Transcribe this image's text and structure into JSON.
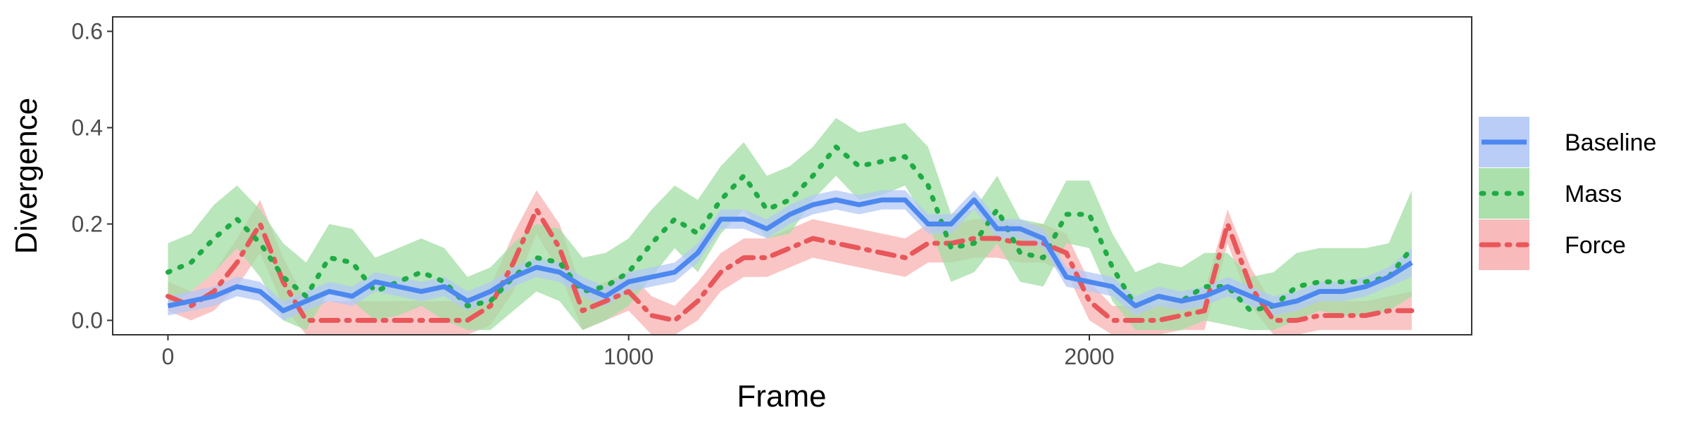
{
  "chart_data": {
    "type": "line",
    "xlabel": "Frame",
    "ylabel": "Divergence",
    "xlim": [
      -120,
      2830
    ],
    "ylim": [
      -0.03,
      0.63
    ],
    "x_ticks": [
      0,
      1000,
      2000
    ],
    "x_tick_labels": [
      "0",
      "1000",
      "2000"
    ],
    "y_ticks": [
      0.0,
      0.2,
      0.4,
      0.6
    ],
    "y_tick_labels": [
      "0.0",
      "0.2",
      "0.4",
      "0.6"
    ],
    "grid": false,
    "legend_position": "right",
    "x": [
      0,
      50,
      100,
      150,
      200,
      250,
      300,
      350,
      400,
      450,
      500,
      550,
      600,
      650,
      700,
      750,
      800,
      850,
      900,
      950,
      1000,
      1050,
      1100,
      1150,
      1200,
      1250,
      1300,
      1350,
      1400,
      1450,
      1500,
      1550,
      1600,
      1650,
      1700,
      1750,
      1800,
      1850,
      1900,
      1950,
      2000,
      2050,
      2100,
      2150,
      2200,
      2250,
      2300,
      2350,
      2400,
      2450,
      2500,
      2550,
      2600,
      2650,
      2700
    ],
    "series": [
      {
        "name": "Baseline",
        "color": "#4d88f0",
        "band_color": "#b3c8f5",
        "dash": "solid",
        "values": [
          0.03,
          0.04,
          0.05,
          0.07,
          0.06,
          0.02,
          0.04,
          0.06,
          0.05,
          0.08,
          0.07,
          0.06,
          0.07,
          0.04,
          0.06,
          0.09,
          0.11,
          0.1,
          0.07,
          0.05,
          0.08,
          0.09,
          0.1,
          0.14,
          0.21,
          0.21,
          0.19,
          0.22,
          0.24,
          0.25,
          0.24,
          0.25,
          0.25,
          0.2,
          0.2,
          0.25,
          0.19,
          0.19,
          0.17,
          0.09,
          0.08,
          0.07,
          0.03,
          0.05,
          0.04,
          0.05,
          0.07,
          0.05,
          0.03,
          0.04,
          0.06,
          0.06,
          0.07,
          0.09,
          0.12
        ],
        "lower": [
          0.01,
          0.02,
          0.03,
          0.05,
          0.04,
          0.0,
          0.02,
          0.04,
          0.03,
          0.06,
          0.05,
          0.04,
          0.05,
          0.02,
          0.04,
          0.07,
          0.09,
          0.08,
          0.05,
          0.03,
          0.06,
          0.07,
          0.08,
          0.12,
          0.19,
          0.19,
          0.17,
          0.2,
          0.22,
          0.23,
          0.22,
          0.23,
          0.23,
          0.18,
          0.18,
          0.23,
          0.17,
          0.17,
          0.15,
          0.07,
          0.06,
          0.05,
          0.01,
          0.03,
          0.02,
          0.03,
          0.05,
          0.03,
          0.01,
          0.02,
          0.04,
          0.04,
          0.05,
          0.07,
          0.09
        ],
        "upper": [
          0.05,
          0.06,
          0.07,
          0.09,
          0.08,
          0.04,
          0.06,
          0.08,
          0.07,
          0.1,
          0.09,
          0.08,
          0.09,
          0.06,
          0.08,
          0.11,
          0.13,
          0.12,
          0.09,
          0.07,
          0.1,
          0.11,
          0.12,
          0.16,
          0.23,
          0.23,
          0.21,
          0.24,
          0.26,
          0.27,
          0.26,
          0.27,
          0.27,
          0.22,
          0.22,
          0.27,
          0.21,
          0.21,
          0.19,
          0.11,
          0.1,
          0.09,
          0.05,
          0.07,
          0.06,
          0.07,
          0.09,
          0.07,
          0.05,
          0.06,
          0.08,
          0.08,
          0.09,
          0.11,
          0.15
        ]
      },
      {
        "name": "Mass",
        "color": "#1fab45",
        "band_color": "#a2dda3",
        "dash": "dotted",
        "values": [
          0.1,
          0.12,
          0.17,
          0.21,
          0.16,
          0.09,
          0.05,
          0.13,
          0.12,
          0.06,
          0.08,
          0.1,
          0.08,
          0.03,
          0.04,
          0.09,
          0.13,
          0.12,
          0.06,
          0.07,
          0.1,
          0.16,
          0.21,
          0.18,
          0.25,
          0.3,
          0.23,
          0.25,
          0.3,
          0.36,
          0.32,
          0.33,
          0.34,
          0.28,
          0.15,
          0.16,
          0.23,
          0.14,
          0.13,
          0.22,
          0.22,
          0.11,
          0.03,
          0.05,
          0.04,
          0.07,
          0.07,
          0.02,
          0.03,
          0.07,
          0.08,
          0.08,
          0.08,
          0.09,
          0.15
        ],
        "lower": [
          0.03,
          0.06,
          0.1,
          0.15,
          0.09,
          0.0,
          -0.02,
          0.06,
          0.04,
          0.0,
          0.01,
          0.03,
          0.0,
          -0.02,
          -0.02,
          0.02,
          0.06,
          0.04,
          -0.02,
          0.0,
          0.03,
          0.09,
          0.15,
          0.1,
          0.18,
          0.23,
          0.17,
          0.18,
          0.25,
          0.3,
          0.25,
          0.26,
          0.28,
          0.2,
          0.08,
          0.1,
          0.16,
          0.08,
          0.07,
          0.16,
          0.15,
          0.04,
          -0.02,
          -0.02,
          -0.02,
          0.0,
          -0.01,
          -0.02,
          -0.02,
          0.0,
          0.02,
          0.01,
          0.01,
          0.02,
          0.05
        ],
        "upper": [
          0.16,
          0.18,
          0.24,
          0.28,
          0.23,
          0.16,
          0.12,
          0.2,
          0.19,
          0.13,
          0.15,
          0.17,
          0.15,
          0.09,
          0.11,
          0.16,
          0.2,
          0.19,
          0.13,
          0.14,
          0.17,
          0.23,
          0.28,
          0.25,
          0.32,
          0.37,
          0.3,
          0.32,
          0.36,
          0.42,
          0.39,
          0.4,
          0.41,
          0.36,
          0.22,
          0.23,
          0.3,
          0.21,
          0.2,
          0.29,
          0.29,
          0.18,
          0.1,
          0.12,
          0.11,
          0.14,
          0.14,
          0.09,
          0.1,
          0.14,
          0.15,
          0.15,
          0.15,
          0.16,
          0.27
        ]
      },
      {
        "name": "Force",
        "color": "#e8575a",
        "band_color": "#f7b3b2",
        "dash": "dashdot",
        "values": [
          0.05,
          0.03,
          0.06,
          0.12,
          0.2,
          0.08,
          0.0,
          0.0,
          0.0,
          0.0,
          0.0,
          0.0,
          0.0,
          0.0,
          0.03,
          0.12,
          0.23,
          0.15,
          0.02,
          0.04,
          0.06,
          0.01,
          0.0,
          0.04,
          0.1,
          0.13,
          0.13,
          0.15,
          0.17,
          0.16,
          0.15,
          0.14,
          0.13,
          0.16,
          0.16,
          0.17,
          0.17,
          0.16,
          0.16,
          0.14,
          0.04,
          0.0,
          0.0,
          0.0,
          0.01,
          0.02,
          0.2,
          0.07,
          0.0,
          0.0,
          0.01,
          0.01,
          0.01,
          0.02,
          0.02
        ],
        "lower": [
          0.02,
          0.0,
          0.02,
          0.07,
          0.14,
          0.03,
          -0.03,
          -0.03,
          -0.03,
          -0.03,
          -0.03,
          -0.03,
          -0.03,
          -0.03,
          -0.01,
          0.06,
          0.18,
          0.1,
          -0.02,
          0.0,
          0.02,
          -0.03,
          -0.03,
          0.0,
          0.06,
          0.09,
          0.09,
          0.11,
          0.13,
          0.12,
          0.11,
          0.1,
          0.09,
          0.12,
          0.12,
          0.13,
          0.13,
          0.12,
          0.12,
          0.1,
          0.0,
          -0.03,
          -0.03,
          -0.03,
          -0.02,
          -0.02,
          0.16,
          0.03,
          -0.03,
          -0.03,
          -0.02,
          -0.02,
          -0.02,
          -0.02,
          -0.02
        ],
        "upper": [
          0.08,
          0.06,
          0.1,
          0.17,
          0.25,
          0.13,
          0.04,
          0.04,
          0.04,
          0.04,
          0.04,
          0.04,
          0.04,
          0.04,
          0.07,
          0.18,
          0.27,
          0.2,
          0.06,
          0.08,
          0.1,
          0.05,
          0.03,
          0.08,
          0.14,
          0.17,
          0.17,
          0.19,
          0.21,
          0.2,
          0.19,
          0.18,
          0.17,
          0.2,
          0.2,
          0.21,
          0.21,
          0.2,
          0.2,
          0.18,
          0.08,
          0.03,
          0.03,
          0.03,
          0.04,
          0.06,
          0.23,
          0.11,
          0.03,
          0.04,
          0.04,
          0.04,
          0.04,
          0.05,
          0.06
        ]
      }
    ]
  }
}
